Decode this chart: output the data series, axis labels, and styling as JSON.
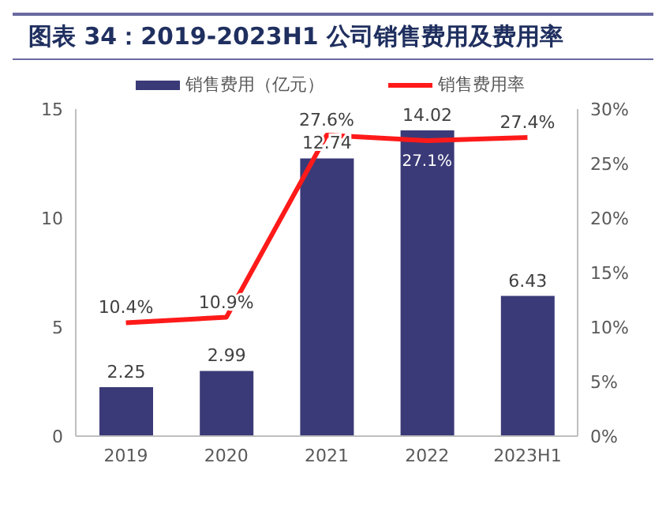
{
  "chart_data": {
    "type": "bar",
    "title": "图表 34：2019-2023H1 公司销售费用及费用率",
    "categories": [
      "2019",
      "2020",
      "2021",
      "2022",
      "2023H1"
    ],
    "series": [
      {
        "name": "销售费用（亿元）",
        "color": "#3b3a78",
        "values": [
          2.25,
          2.99,
          12.74,
          14.02,
          6.43
        ],
        "value_labels": [
          "2.25",
          "2.99",
          "12.74",
          "14.02",
          "6.43"
        ]
      },
      {
        "name": "销售费用率",
        "type": "line",
        "axis": "y2",
        "color": "#ff1a1a",
        "values": [
          10.4,
          10.9,
          27.6,
          27.1,
          27.4
        ],
        "value_labels": [
          "10.4%",
          "10.9%",
          "27.6%",
          "27.1%",
          "27.4%"
        ]
      }
    ],
    "ylim": [
      0,
      15
    ],
    "yticks": [
      0,
      5,
      10,
      15
    ],
    "y2lim": [
      0,
      30
    ],
    "y2ticks": [
      {
        "value": 0,
        "label": "0%"
      },
      {
        "value": 5,
        "label": "5%"
      },
      {
        "value": 10,
        "label": "10%"
      },
      {
        "value": 15,
        "label": "15%"
      },
      {
        "value": 20,
        "label": "20%"
      },
      {
        "value": 25,
        "label": "25%"
      },
      {
        "value": 30,
        "label": "30%"
      }
    ],
    "legend": "top",
    "marker": "none"
  }
}
